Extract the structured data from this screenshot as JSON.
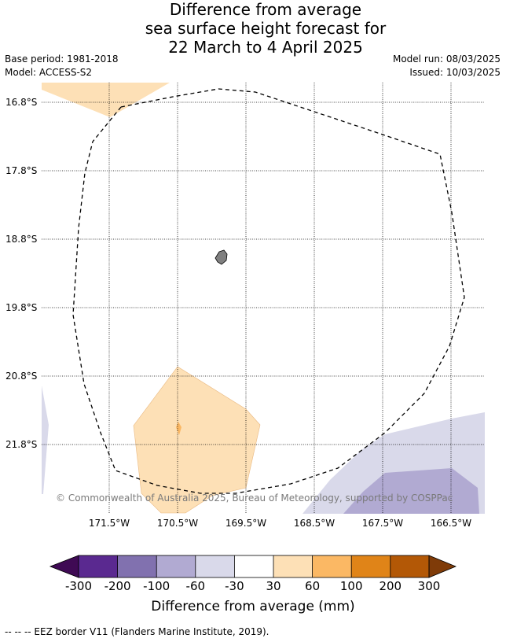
{
  "title": {
    "line1": "Difference from average",
    "line2": "sea surface height forecast for",
    "line3": "22 March to 4 April 2025"
  },
  "meta": {
    "base_period": "Base period: 1981-2018",
    "model": "Model: ACCESS-S2",
    "model_run": "Model run: 08/03/2025",
    "issued": "Issued: 10/03/2025"
  },
  "map": {
    "lat_labels": [
      "16.8°S",
      "17.8°S",
      "18.8°S",
      "19.8°S",
      "20.8°S",
      "21.8°S"
    ],
    "lon_labels": [
      "171.5°W",
      "170.5°W",
      "169.5°W",
      "168.5°W",
      "167.5°W",
      "166.5°W"
    ],
    "copyright": "© Commonwealth of Australia 2025, Bureau of Meteorology, supported by COSPPac",
    "colors": {
      "land": "#808080",
      "eez_border": "#000000",
      "pos_30_60": "#fde0b6",
      "pos_60_100": "#fbb864",
      "neg_60_30": "#d9d9ea",
      "neg_100_60": "#b1aad2"
    }
  },
  "colorbar": {
    "title": "Difference from average (mm)",
    "ticks": [
      "-300",
      "-200",
      "-100",
      "-60",
      "-30",
      "30",
      "60",
      "100",
      "200",
      "300"
    ],
    "colors": [
      "#3f0a54",
      "#5a2990",
      "#8171af",
      "#b1aad2",
      "#d9d9ea",
      "#ffffff",
      "#fde0b6",
      "#fbb864",
      "#e08418",
      "#b35806",
      "#7f3b08"
    ]
  },
  "footnote": "--  --  -- EEZ border V11 (Flanders Marine Institute, 2019)."
}
